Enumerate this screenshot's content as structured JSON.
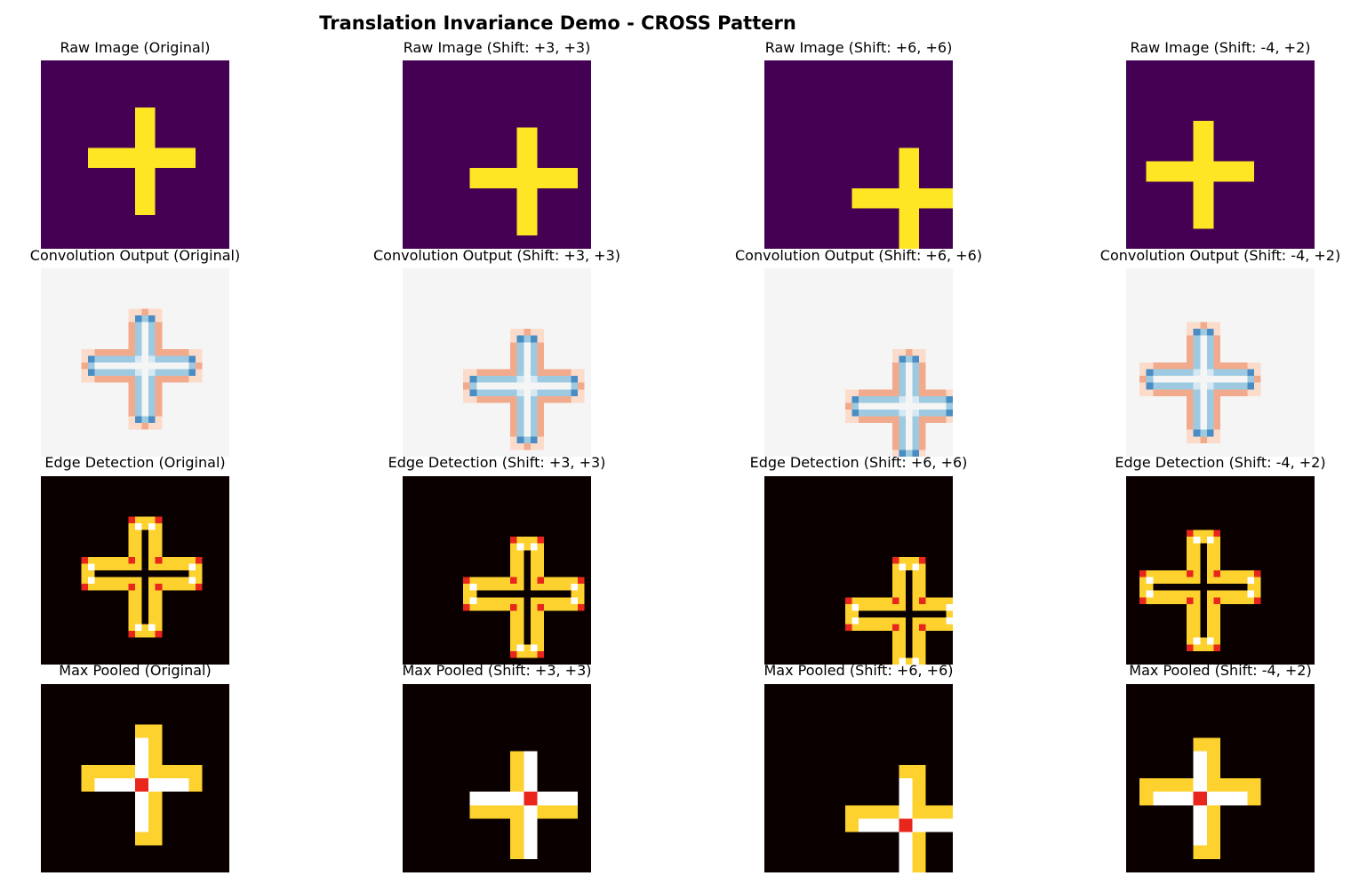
{
  "title": "Translation Invariance Demo - CROSS Pattern",
  "columns": [
    "Original",
    "Shift: +3, +3",
    "Shift: +6, +6",
    "Shift: -4, +2"
  ],
  "rows": [
    {
      "stage": "Raw Image",
      "titles": [
        "Raw Image (Original)",
        "Raw Image (Shift: +3, +3)",
        "Raw Image (Shift: +6, +6)",
        "Raw Image (Shift: -4, +2)"
      ]
    },
    {
      "stage": "Convolution Output",
      "titles": [
        "Convolution Output (Original)",
        "Convolution Output (Shift: +3, +3)",
        "Convolution Output (Shift: +6, +6)",
        "Convolution Output (Shift: -4, +2)"
      ]
    },
    {
      "stage": "Edge Detection",
      "titles": [
        "Edge Detection (Original)",
        "Edge Detection (Shift: +3, +3)",
        "Edge Detection (Shift: +6, +6)",
        "Edge Detection (Shift: -4, +2)"
      ]
    },
    {
      "stage": "Max Pooled",
      "titles": [
        "Max Pooled (Original)",
        "Max Pooled (Shift: +3, +3)",
        "Max Pooled (Shift: +6, +6)",
        "Max Pooled (Shift: -4, +2)"
      ]
    }
  ],
  "colors": {
    "viridis_low": "#440154",
    "viridis_high": "#fde725",
    "rdbu_background": "#f5f5f5",
    "rdbu_dark_blue": "#4a8cc4",
    "rdbu_light_blue": "#9ecae1",
    "rdbu_pale_blue": "#d6e8f3",
    "rdbu_salmon": "#f2aa8c",
    "rdbu_pale_peach": "#fbdccb",
    "hot_black": "#0b0000",
    "hot_red": "#e8261b",
    "hot_yellow": "#fdd22e",
    "hot_white": "#ffffff"
  }
}
